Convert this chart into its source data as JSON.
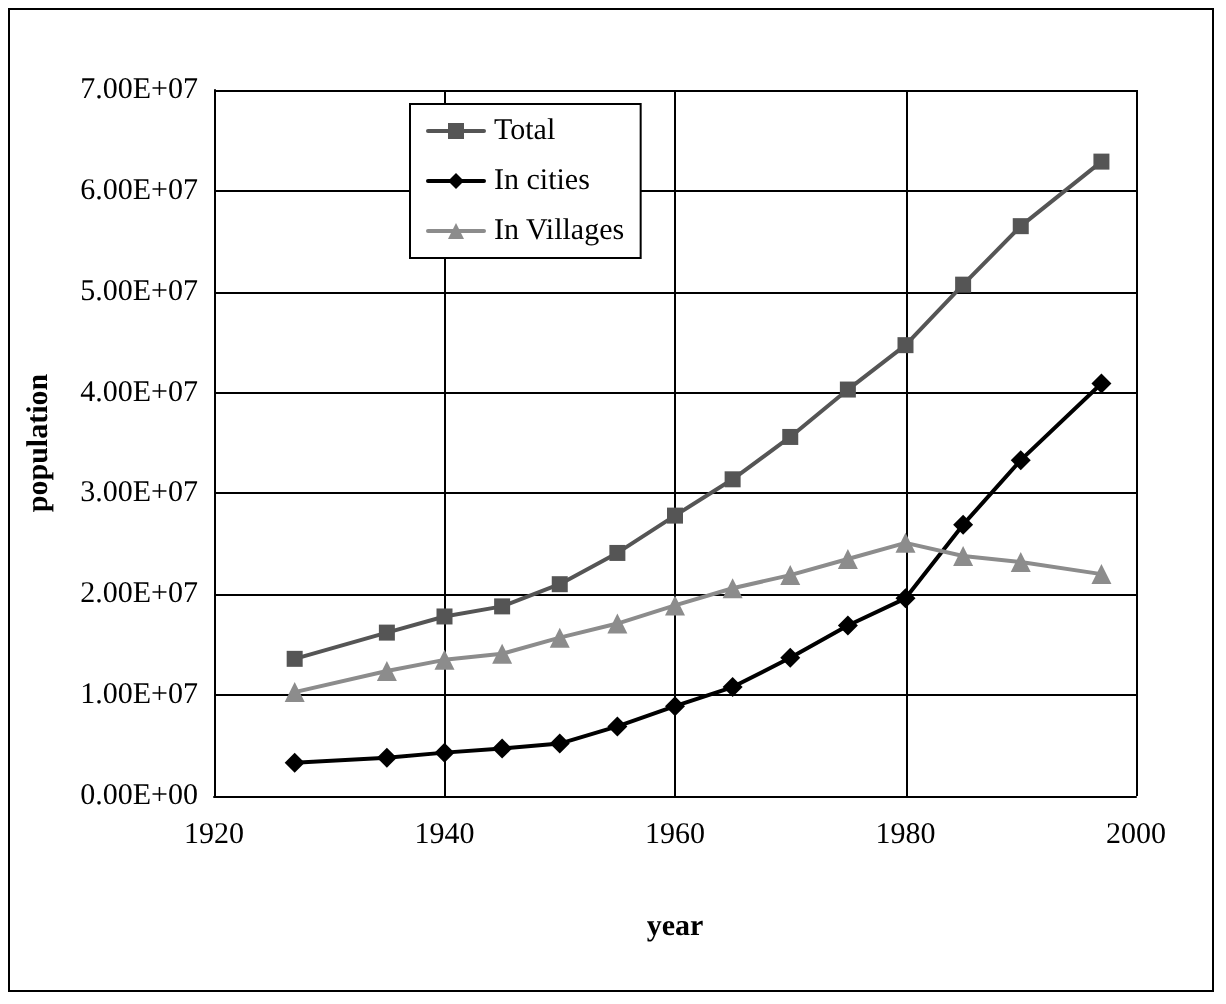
{
  "chart_data": {
    "type": "line",
    "xlabel": "year",
    "ylabel": "population",
    "x": [
      1927,
      1935,
      1940,
      1945,
      1950,
      1955,
      1960,
      1965,
      1970,
      1975,
      1980,
      1985,
      1990,
      1997
    ],
    "series": [
      {
        "name": "Total",
        "color": "#555555",
        "marker": "square",
        "values": [
          13600000,
          16200000,
          17800000,
          18800000,
          21000000,
          24100000,
          27800000,
          31400000,
          35600000,
          40300000,
          44700000,
          50700000,
          56500000,
          62900000
        ]
      },
      {
        "name": "In cities",
        "color": "#000000",
        "marker": "diamond",
        "values": [
          3300000,
          3800000,
          4300000,
          4700000,
          5200000,
          6900000,
          8900000,
          10800000,
          13700000,
          16900000,
          19600000,
          26900000,
          33300000,
          40900000
        ]
      },
      {
        "name": "In Villages",
        "color": "#8c8c8c",
        "marker": "triangle",
        "values": [
          10300000,
          12400000,
          13500000,
          14100000,
          15700000,
          17100000,
          18900000,
          20600000,
          21900000,
          23500000,
          25100000,
          23800000,
          23200000,
          22000000
        ]
      }
    ],
    "xlim": [
      1920,
      2000
    ],
    "xticks": [
      1920,
      1940,
      1960,
      1980,
      2000
    ],
    "ylim": [
      0,
      70000000
    ],
    "yticks": [
      {
        "value": 0,
        "label": "0.00E+00"
      },
      {
        "value": 10000000,
        "label": "1.00E+07"
      },
      {
        "value": 20000000,
        "label": "2.00E+07"
      },
      {
        "value": 30000000,
        "label": "3.00E+07"
      },
      {
        "value": 40000000,
        "label": "4.00E+07"
      },
      {
        "value": 50000000,
        "label": "5.00E+07"
      },
      {
        "value": 60000000,
        "label": "6.00E+07"
      },
      {
        "value": 70000000,
        "label": "7.00E+07"
      }
    ],
    "grid": true,
    "legend": "top left"
  }
}
